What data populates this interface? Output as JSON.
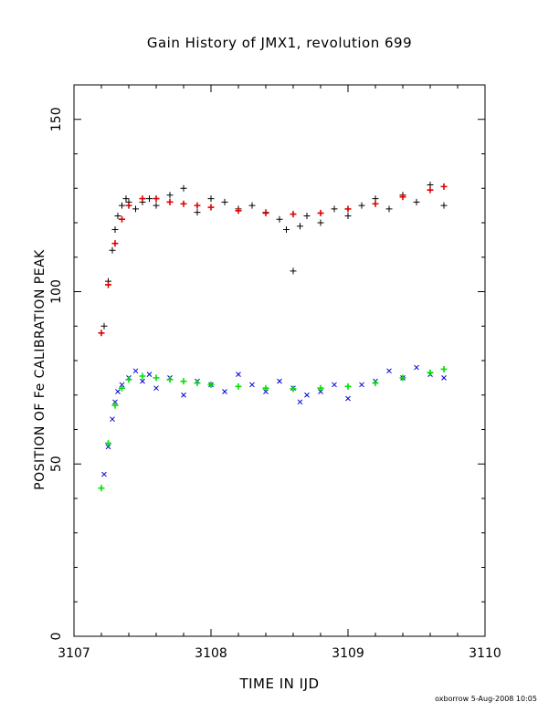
{
  "chart_data": {
    "type": "scatter",
    "title": "Gain History of JMX1, revolution 699",
    "xlabel": "TIME IN IJD",
    "ylabel": "POSITION OF Fe CALIBRATION PEAK",
    "xlim": [
      3107,
      3110
    ],
    "ylim": [
      0,
      160
    ],
    "xticks": [
      3107,
      3108,
      3109,
      3110
    ],
    "yticks": [
      0,
      50,
      100,
      150
    ],
    "grid": false,
    "legend": "none",
    "series": [
      {
        "marker": "plus",
        "color": "#000000",
        "x": [
          3107.22,
          3107.25,
          3107.28,
          3107.3,
          3107.32,
          3107.35,
          3107.38,
          3107.4,
          3107.45,
          3107.5,
          3107.55,
          3107.6,
          3107.7,
          3107.8,
          3107.9,
          3108.0,
          3108.1,
          3108.2,
          3108.3,
          3108.4,
          3108.5,
          3108.55,
          3108.6,
          3108.65,
          3108.7,
          3108.8,
          3108.9,
          3109.0,
          3109.1,
          3109.2,
          3109.3,
          3109.4,
          3109.5,
          3109.6,
          3109.7
        ],
        "y": [
          90,
          103,
          112,
          118,
          122,
          125,
          127,
          126,
          124,
          126,
          127,
          125,
          128,
          130,
          123,
          127,
          126,
          124,
          125,
          123,
          121,
          118,
          106,
          119,
          122,
          120,
          124,
          122,
          125,
          127,
          124,
          128,
          126,
          131,
          125
        ]
      },
      {
        "marker": "plus",
        "color": "#e00000",
        "x": [
          3107.2,
          3107.25,
          3107.3,
          3107.35,
          3107.4,
          3107.5,
          3107.6,
          3107.7,
          3107.8,
          3107.9,
          3108.0,
          3108.2,
          3108.4,
          3108.6,
          3108.8,
          3109.0,
          3109.2,
          3109.4,
          3109.6,
          3109.7
        ],
        "y": [
          88,
          102,
          114,
          121,
          125,
          127,
          127,
          126,
          125.5,
          125,
          124.5,
          123.5,
          122.8,
          122.5,
          122.8,
          124,
          125.5,
          127.5,
          129.5,
          130.5
        ]
      },
      {
        "marker": "x",
        "color": "#0000d0",
        "x": [
          3107.22,
          3107.25,
          3107.28,
          3107.3,
          3107.32,
          3107.35,
          3107.4,
          3107.45,
          3107.5,
          3107.55,
          3107.6,
          3107.7,
          3107.8,
          3107.9,
          3108.0,
          3108.1,
          3108.2,
          3108.3,
          3108.4,
          3108.5,
          3108.6,
          3108.65,
          3108.7,
          3108.8,
          3108.9,
          3109.0,
          3109.1,
          3109.2,
          3109.3,
          3109.4,
          3109.5,
          3109.6,
          3109.7
        ],
        "y": [
          47,
          55,
          63,
          68,
          71,
          73,
          75,
          77,
          74,
          76,
          72,
          75,
          70,
          74,
          73,
          71,
          76,
          73,
          71,
          74,
          72,
          68,
          70,
          71,
          73,
          69,
          73,
          74,
          77,
          75,
          78,
          76,
          75
        ]
      },
      {
        "marker": "plus",
        "color": "#00e000",
        "x": [
          3107.2,
          3107.25,
          3107.3,
          3107.35,
          3107.4,
          3107.5,
          3107.6,
          3107.7,
          3107.8,
          3107.9,
          3108.0,
          3108.2,
          3108.4,
          3108.6,
          3108.8,
          3109.0,
          3109.2,
          3109.4,
          3109.6,
          3109.7
        ],
        "y": [
          43,
          56,
          67,
          72,
          74.5,
          75.5,
          75,
          74.5,
          74,
          73.5,
          73,
          72.5,
          72,
          71.8,
          72,
          72.5,
          73.5,
          75,
          76.5,
          77.5
        ]
      }
    ]
  },
  "footer": {
    "credit": "oxborrow  5-Aug-2008 10:05"
  }
}
